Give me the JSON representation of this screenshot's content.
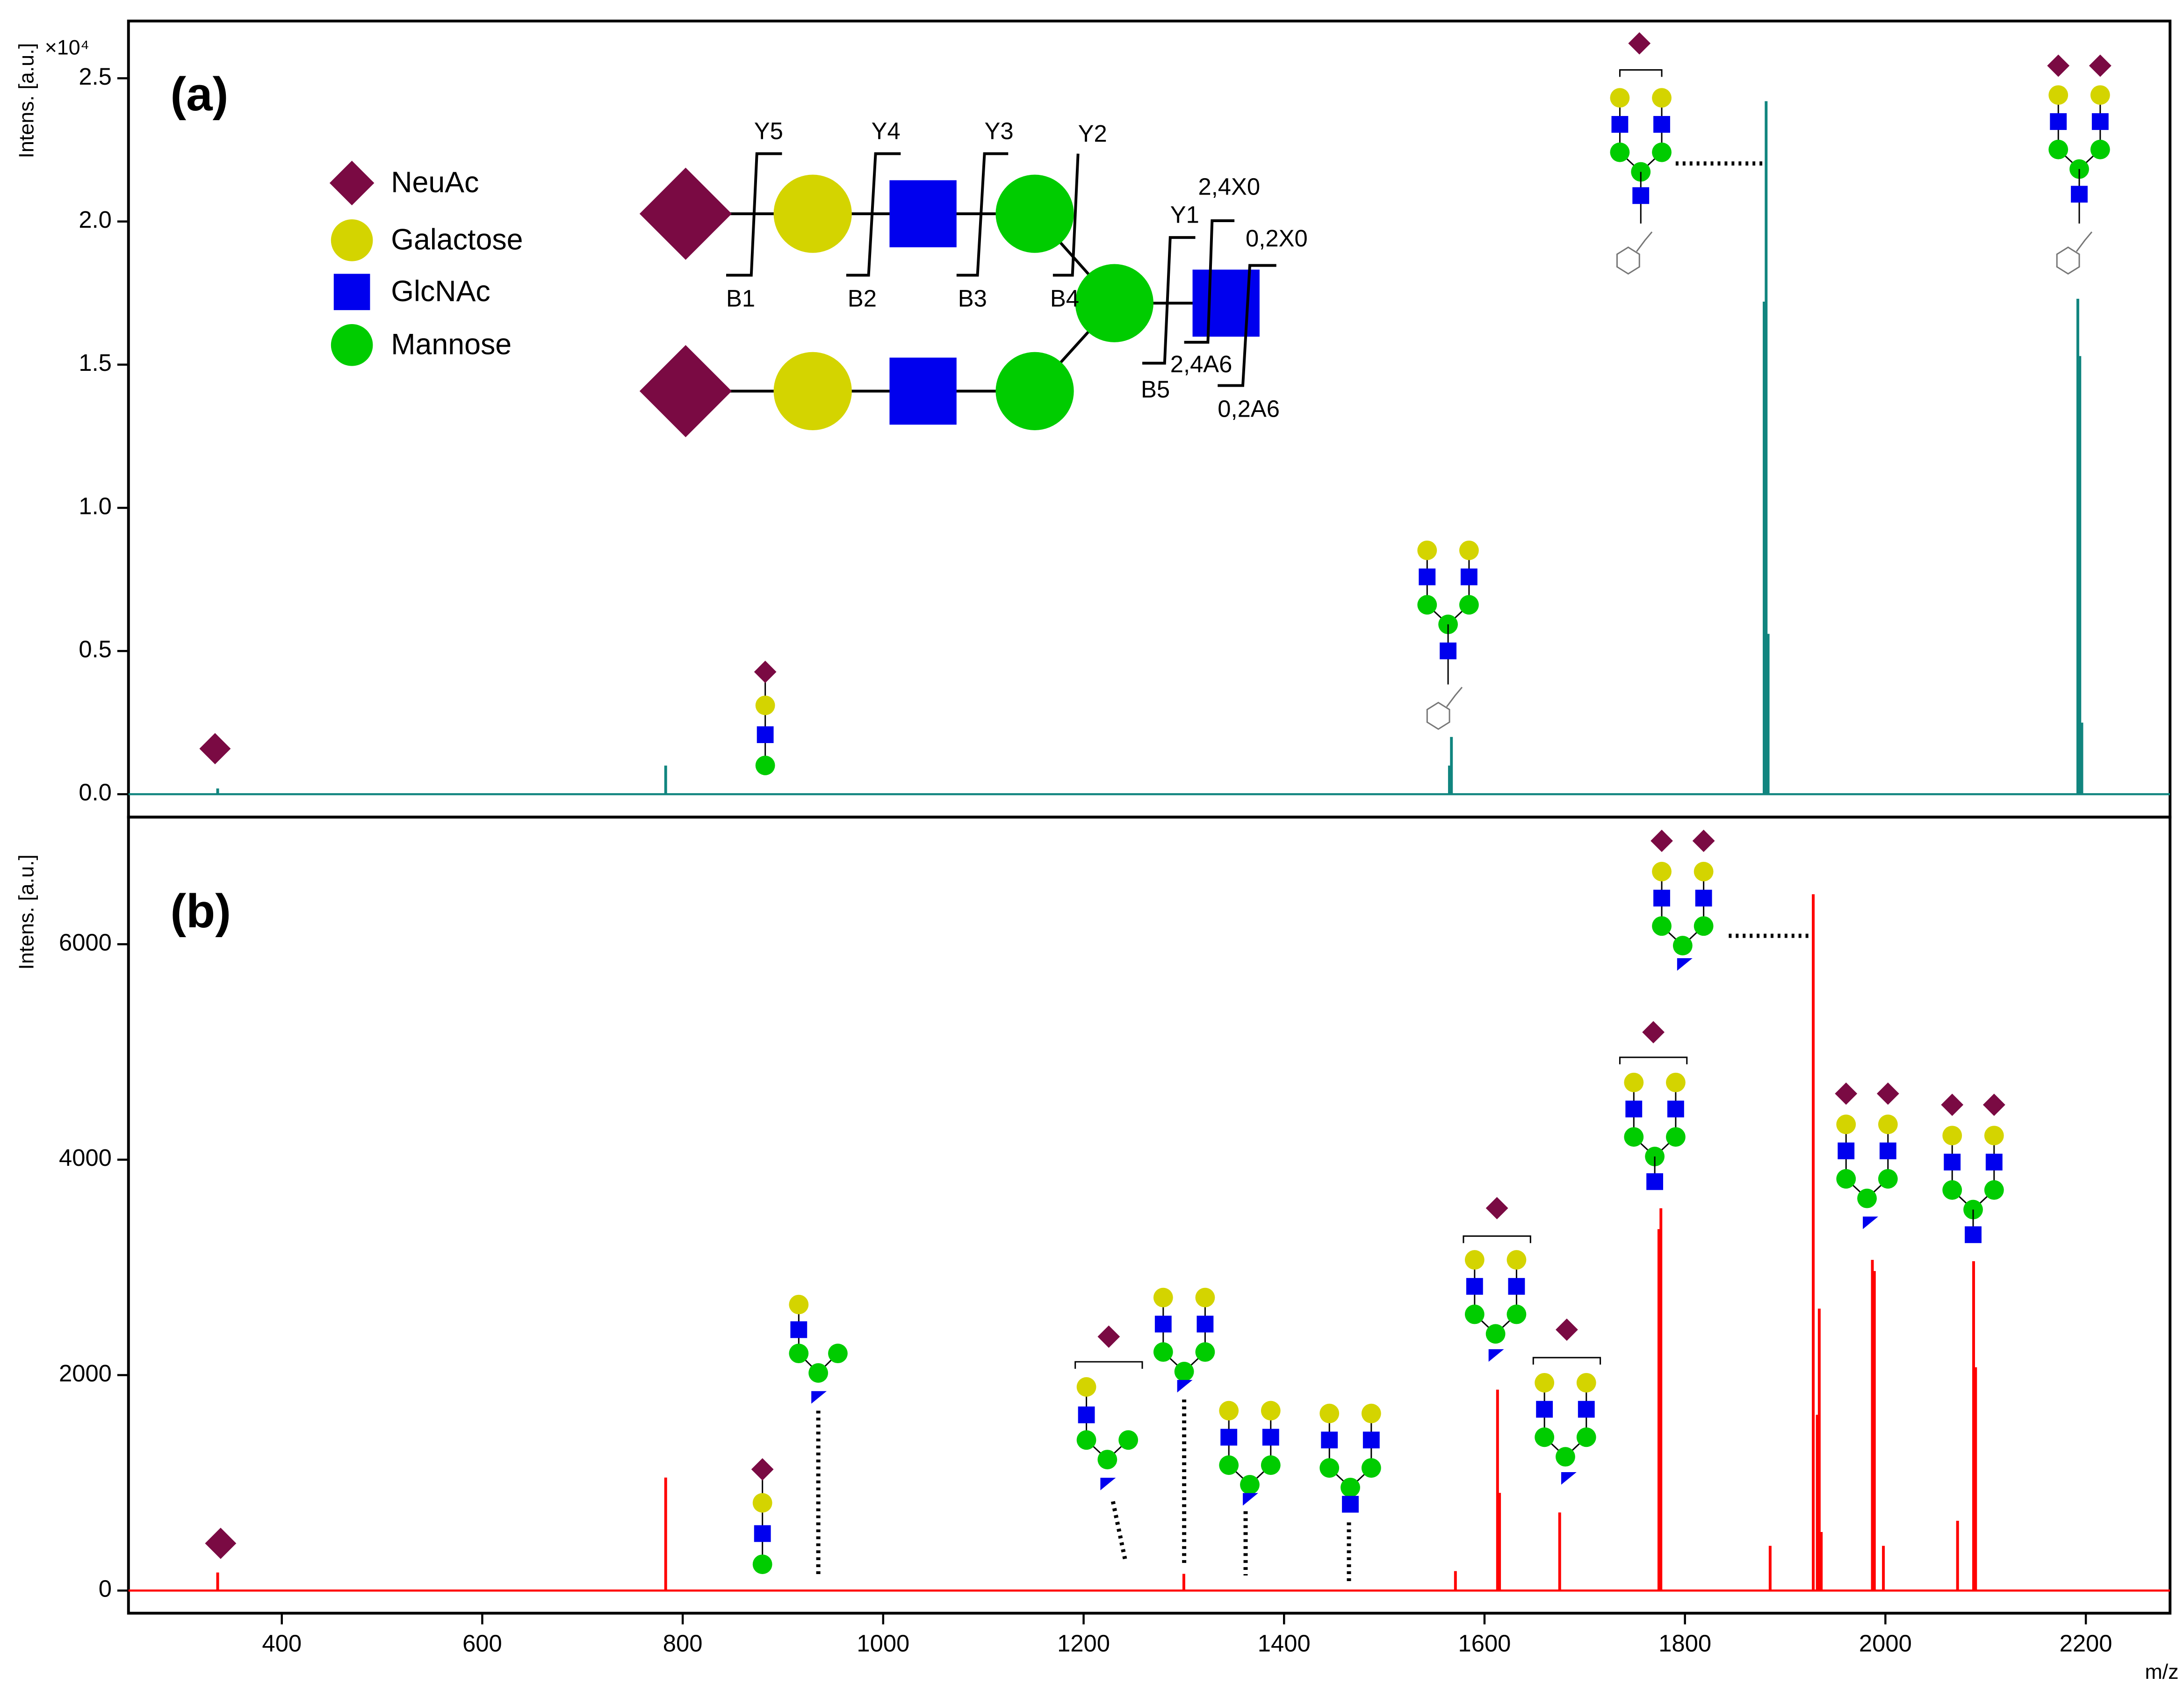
{
  "chart_data": [
    {
      "type": "bar",
      "panel_label": "(a)",
      "y_label": "Intens. [a.u.]",
      "y_scale_label": "×10⁴",
      "color": "#11857f",
      "x": [
        336,
        783,
        1565,
        1567,
        1879,
        1881,
        1883,
        2192,
        2194,
        2196
      ],
      "values": [
        0.02,
        0.1,
        0.1,
        0.2,
        1.72,
        2.42,
        0.56,
        1.73,
        1.53,
        0.25
      ],
      "xlim": [
        247,
        2284
      ],
      "ylim": [
        -0.08,
        2.7
      ],
      "yticks": [
        {
          "value": 0,
          "label": "0.0"
        },
        {
          "value": 0.5,
          "label": "0.5"
        },
        {
          "value": 1,
          "label": "1.0"
        },
        {
          "value": 1.5,
          "label": "1.5"
        },
        {
          "value": 2,
          "label": "2.0"
        },
        {
          "value": 2.5,
          "label": "2.5"
        }
      ],
      "legend": [
        "NeuAc",
        "Galactose",
        "GlcNAc",
        "Mannose"
      ],
      "scheme_labels": [
        "Y5",
        "Y4",
        "Y3",
        "Y2",
        "2,4X0",
        "0,2X0",
        "Y1",
        "B1",
        "B2",
        "B3",
        "B4",
        "B5",
        "2,4A6",
        "0,2A6"
      ]
    },
    {
      "type": "bar",
      "panel_label": "(b)",
      "y_label": "Intens. [a.u.]",
      "x_label": "m/z",
      "color": "#ff0000",
      "x": [
        336,
        783,
        1300,
        1571,
        1613,
        1615,
        1675,
        1774,
        1776,
        1885,
        1928,
        1932,
        1934,
        1936,
        1987,
        1989,
        1998,
        2072,
        2088,
        2090
      ],
      "values": [
        168,
        1049,
        155,
        181,
        1865,
        907,
        725,
        3355,
        3549,
        415,
        6464,
        1632,
        2617,
        544,
        3070,
        2966,
        415,
        648,
        3057,
        2073
      ],
      "xlim": [
        247,
        2284
      ],
      "ylim": [
        -210,
        7180
      ],
      "xticks": [
        400,
        600,
        800,
        1000,
        1200,
        1400,
        1600,
        1800,
        2000,
        2200
      ],
      "yticks": [
        0,
        2000,
        4000,
        6000
      ]
    }
  ]
}
